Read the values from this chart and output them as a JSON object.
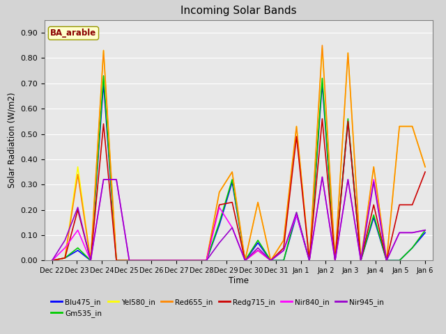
{
  "title": "Incoming Solar Bands",
  "xlabel": "Time",
  "ylabel": "Solar Radiation (W/m2)",
  "annotation": "BA_arable",
  "ylim": [
    0.0,
    0.95
  ],
  "yticks": [
    0.0,
    0.1,
    0.2,
    0.3,
    0.4,
    0.5,
    0.6,
    0.7,
    0.8,
    0.9
  ],
  "fig_width": 6.4,
  "fig_height": 4.8,
  "dpi": 100,
  "background_color": "#d4d4d4",
  "plot_bg_color": "#e8e8e8",
  "series_colors": {
    "Blu475_in": "#0000ff",
    "Gm535_in": "#00cc00",
    "Yel580_in": "#ffff00",
    "Red655_in": "#ff8800",
    "Redg715_in": "#cc0000",
    "Nir840_in": "#ff00ff",
    "Nir945_in": "#9900cc"
  },
  "legend_order": [
    "Blu475_in",
    "Gm535_in",
    "Yel580_in",
    "Red655_in",
    "Redg715_in",
    "Nir840_in",
    "Nir945_in"
  ],
  "x_tick_labels": [
    "Dec 22",
    "Dec 23",
    "Dec 24",
    "Dec 25",
    "Dec 26",
    "Dec 27",
    "Dec 28",
    "Dec 29",
    "Dec 30",
    "Dec 31",
    "Jan 1",
    "Jan 2",
    "Jan 3",
    "Jan 4",
    "Jan 5",
    "Jan 6"
  ],
  "data": {
    "Blu475_in": [
      0.0,
      0.01,
      0.04,
      0.0,
      0.7,
      0.0,
      0.0,
      0.0,
      0.0,
      0.0,
      0.0,
      0.0,
      0.0,
      0.14,
      0.31,
      0.0,
      0.07,
      0.0,
      0.0,
      0.18,
      0.0,
      0.7,
      0.0,
      0.55,
      0.0,
      0.17,
      0.0,
      0.0,
      0.05,
      0.11
    ],
    "Gm535_in": [
      0.0,
      0.01,
      0.05,
      0.0,
      0.73,
      0.0,
      0.0,
      0.0,
      0.0,
      0.0,
      0.0,
      0.0,
      0.0,
      0.15,
      0.32,
      0.0,
      0.08,
      0.0,
      0.0,
      0.19,
      0.0,
      0.72,
      0.0,
      0.56,
      0.0,
      0.18,
      0.0,
      0.0,
      0.05,
      0.12
    ],
    "Yel580_in": [
      0.0,
      0.01,
      0.37,
      0.0,
      0.83,
      0.0,
      0.0,
      0.0,
      0.0,
      0.0,
      0.0,
      0.0,
      0.0,
      0.27,
      0.35,
      0.0,
      0.23,
      0.0,
      0.08,
      0.53,
      0.0,
      0.84,
      0.0,
      0.82,
      0.0,
      0.37,
      0.0,
      0.53,
      0.53,
      0.37
    ],
    "Red655_in": [
      0.0,
      0.01,
      0.34,
      0.0,
      0.83,
      0.0,
      0.0,
      0.0,
      0.0,
      0.0,
      0.0,
      0.0,
      0.0,
      0.27,
      0.35,
      0.0,
      0.23,
      0.0,
      0.08,
      0.53,
      0.0,
      0.85,
      0.0,
      0.82,
      0.0,
      0.37,
      0.0,
      0.53,
      0.53,
      0.37
    ],
    "Redg715_in": [
      0.0,
      0.01,
      0.2,
      0.0,
      0.54,
      0.0,
      0.0,
      0.0,
      0.0,
      0.0,
      0.0,
      0.0,
      0.0,
      0.22,
      0.23,
      0.0,
      0.04,
      0.0,
      0.05,
      0.49,
      0.0,
      0.56,
      0.0,
      0.55,
      0.0,
      0.22,
      0.0,
      0.22,
      0.22,
      0.35
    ],
    "Nir840_in": [
      0.0,
      0.05,
      0.12,
      0.0,
      0.32,
      0.32,
      0.0,
      0.0,
      0.0,
      0.0,
      0.0,
      0.0,
      0.0,
      0.21,
      0.13,
      0.0,
      0.04,
      0.0,
      0.04,
      0.18,
      0.0,
      0.33,
      0.0,
      0.32,
      0.0,
      0.32,
      0.0,
      0.11,
      0.11,
      0.12
    ],
    "Nir945_in": [
      0.0,
      0.08,
      0.21,
      0.0,
      0.32,
      0.32,
      0.0,
      0.0,
      0.0,
      0.0,
      0.0,
      0.0,
      0.0,
      0.07,
      0.13,
      0.0,
      0.05,
      0.0,
      0.04,
      0.19,
      0.0,
      0.33,
      0.0,
      0.32,
      0.0,
      0.31,
      0.0,
      0.11,
      0.11,
      0.12
    ]
  },
  "n_points": 30,
  "n_days": 16
}
